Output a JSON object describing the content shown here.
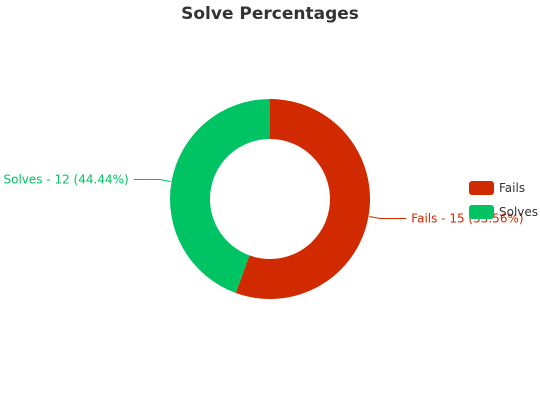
{
  "chart_data": {
    "type": "pie",
    "title": "Solve Percentages",
    "donut": true,
    "legend_position": "right",
    "slices": [
      {
        "name": "Fails",
        "value": 15,
        "percent": 55.56,
        "label": "Fails - 15 (55.56%)",
        "color": "#d12a00"
      },
      {
        "name": "Solves",
        "value": 12,
        "percent": 44.44,
        "label": "Solves - 12 (44.44%)",
        "color": "#00c463"
      }
    ]
  }
}
